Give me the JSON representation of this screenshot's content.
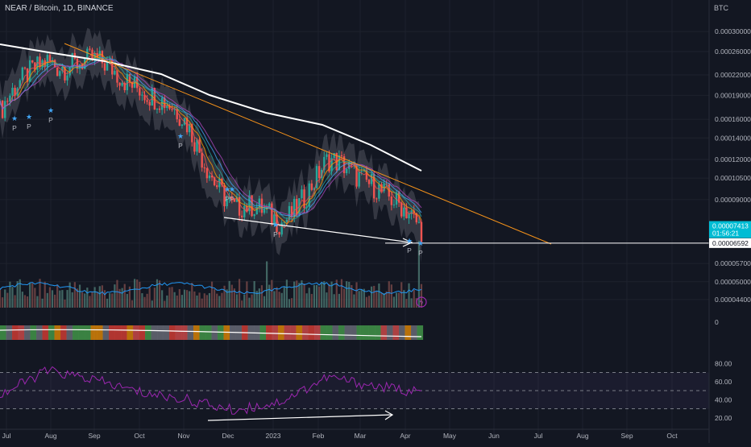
{
  "header": {
    "title": "NEAR / Bitcoin, 1D, BINANCE",
    "currency": "BTC"
  },
  "price_axis": {
    "labels": [
      "0.00030000",
      "0.00026000",
      "0.00022000",
      "0.00019000",
      "0.00016000",
      "0.00014000",
      "0.00012000",
      "0.00010500",
      "0.00009000",
      "0.00006592",
      "0.00005700",
      "0.00005000",
      "0.00004400"
    ],
    "current_price": "0.00007413",
    "countdown": "01:56:21",
    "level_price": "0.00006592"
  },
  "volume_axis": {
    "label": "0"
  },
  "rsi_axis": {
    "labels": [
      "80.00",
      "60.00",
      "40.00",
      "20.00"
    ]
  },
  "time_axis": {
    "labels": [
      "Jul",
      "Aug",
      "Sep",
      "Oct",
      "Nov",
      "Dec",
      "2023",
      "Feb",
      "Mar",
      "Apr",
      "May",
      "Jun",
      "Jul",
      "Aug",
      "Sep",
      "Oct"
    ]
  },
  "signals": {
    "marker": "P"
  },
  "colors": {
    "background": "#131722",
    "candle_up": "#26a69a",
    "candle_down": "#ef5350",
    "trendline": "#f7931a",
    "moving_average": "#ffffff",
    "rsi": "#9c27b0",
    "current_price_tag": "#00bcd4",
    "signal_star": "#42a5f5"
  },
  "chart_data": [
    {
      "type": "line",
      "title": "NEAR / Bitcoin, 1D, BINANCE",
      "x": [
        "Jul",
        "Aug",
        "Sep",
        "Oct",
        "Nov",
        "Dec",
        "2023",
        "Feb",
        "Mar",
        "Apr"
      ],
      "series": [
        {
          "name": "",
          "values": [
            0.00017,
            0.00025,
            0.000235,
            0.00021,
            0.00015,
            8.5e-05,
            7.8e-05,
            0.000115,
            0.000105,
            7e-05
          ]
        }
      ],
      "ylim": [
        4.2e-05,
        0.00032
      ],
      "scale": "log",
      "current_value": 7.413e-05,
      "horizontal_level": 6.592e-05
    },
    {
      "type": "line",
      "x": [
        "Jul",
        "Aug",
        "Sep",
        "Oct",
        "Nov",
        "Dec",
        "2023",
        "Feb",
        "Mar",
        "Apr"
      ],
      "series": [
        {
          "name": "",
          "values": [
            45,
            72,
            62,
            48,
            40,
            28,
            38,
            65,
            55,
            48
          ]
        }
      ],
      "ylim": [
        10,
        90
      ],
      "reference_lines": [
        70,
        50,
        30
      ]
    }
  ]
}
